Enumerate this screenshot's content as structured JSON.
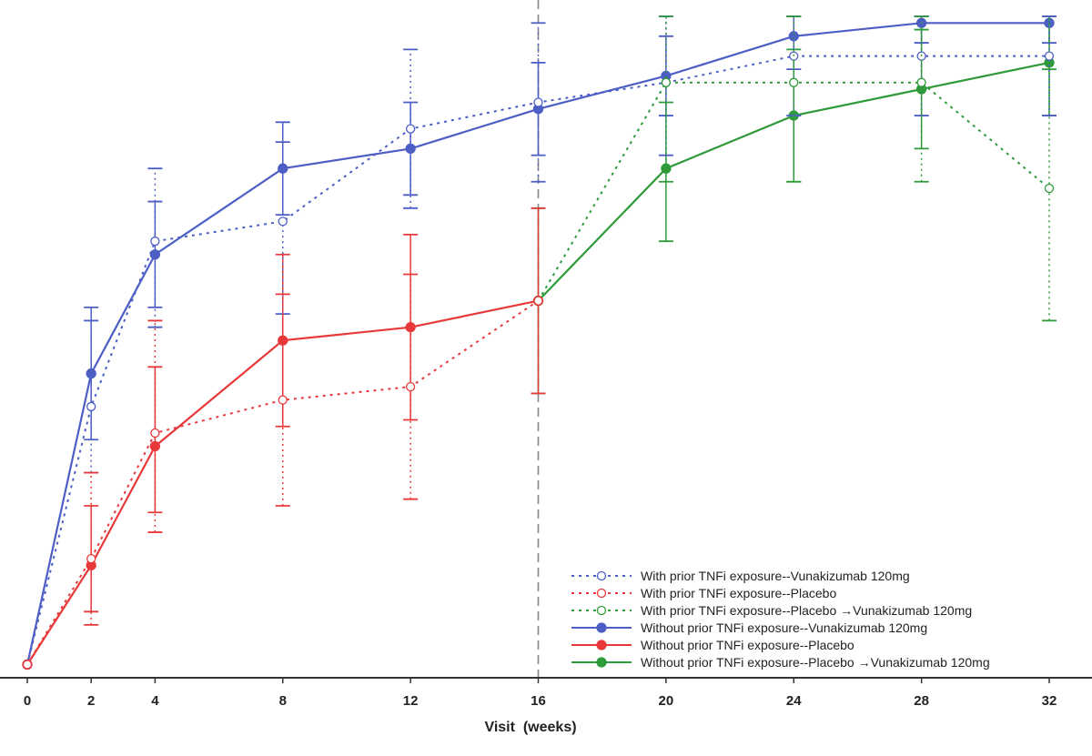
{
  "chart_data": {
    "type": "line",
    "title": "",
    "xlabel": "Visit  (weeks)",
    "ylabel": "",
    "x_ticks": [
      0,
      2,
      4,
      8,
      12,
      16,
      20,
      24,
      28,
      32
    ],
    "xlim": [
      0,
      32
    ],
    "ylim": [
      0,
      100
    ],
    "grid": false,
    "reference_line_x": 16,
    "legend_position": "bottom-right",
    "series": [
      {
        "name": "With prior TNFi exposure--Vunakizumab 120mg",
        "color": "#4d5ec4",
        "style": "dotted",
        "marker": "open",
        "points": [
          {
            "x": 0,
            "y": 2,
            "lo": 2,
            "hi": 2
          },
          {
            "x": 2,
            "y": 41,
            "lo": 31,
            "hi": 54
          },
          {
            "x": 4,
            "y": 66,
            "lo": 53,
            "hi": 77
          },
          {
            "x": 8,
            "y": 69,
            "lo": 55,
            "hi": 81
          },
          {
            "x": 12,
            "y": 83,
            "lo": 71,
            "hi": 95
          },
          {
            "x": 16,
            "y": 87,
            "lo": 75,
            "hi": 99
          },
          {
            "x": 20,
            "y": 90,
            "lo": 79,
            "hi": 100
          },
          {
            "x": 24,
            "y": 94,
            "lo": 85,
            "hi": 100
          },
          {
            "x": 28,
            "y": 94,
            "lo": 85,
            "hi": 100
          },
          {
            "x": 32,
            "y": 94,
            "lo": 85,
            "hi": 100
          }
        ]
      },
      {
        "name": "With prior TNFi exposure--Placebo",
        "color": "#e8393a",
        "style": "dotted",
        "marker": "open",
        "points": [
          {
            "x": 0,
            "y": 2,
            "lo": 2,
            "hi": 2
          },
          {
            "x": 2,
            "y": 18,
            "lo": 8,
            "hi": 31
          },
          {
            "x": 4,
            "y": 37,
            "lo": 22,
            "hi": 54
          },
          {
            "x": 8,
            "y": 42,
            "lo": 26,
            "hi": 58
          },
          {
            "x": 12,
            "y": 44,
            "lo": 27,
            "hi": 61
          },
          {
            "x": 16,
            "y": 57,
            "lo": 57,
            "hi": 57
          }
        ]
      },
      {
        "name": "With prior TNFi exposure--Placebo →Vunakizumab 120mg",
        "color": "#2e9a3a",
        "style": "dotted",
        "marker": "open",
        "points": [
          {
            "x": 16,
            "y": 57,
            "lo": 57,
            "hi": 57
          },
          {
            "x": 20,
            "y": 90,
            "lo": 75,
            "hi": 100
          },
          {
            "x": 24,
            "y": 90,
            "lo": 75,
            "hi": 100
          },
          {
            "x": 28,
            "y": 90,
            "lo": 75,
            "hi": 100
          },
          {
            "x": 32,
            "y": 74,
            "lo": 54,
            "hi": 92
          }
        ]
      },
      {
        "name": "Without prior TNFi exposure--Vunakizumab 120mg",
        "color": "#4d5ec4",
        "style": "solid",
        "marker": "filled",
        "points": [
          {
            "x": 0,
            "y": 2,
            "lo": 2,
            "hi": 2
          },
          {
            "x": 2,
            "y": 46,
            "lo": 36,
            "hi": 56
          },
          {
            "x": 4,
            "y": 64,
            "lo": 56,
            "hi": 72
          },
          {
            "x": 8,
            "y": 77,
            "lo": 70,
            "hi": 84
          },
          {
            "x": 12,
            "y": 80,
            "lo": 73,
            "hi": 87
          },
          {
            "x": 16,
            "y": 86,
            "lo": 79,
            "hi": 93
          },
          {
            "x": 20,
            "y": 91,
            "lo": 85,
            "hi": 97
          },
          {
            "x": 24,
            "y": 97,
            "lo": 92,
            "hi": 100
          },
          {
            "x": 28,
            "y": 99,
            "lo": 96,
            "hi": 100
          },
          {
            "x": 32,
            "y": 99,
            "lo": 96,
            "hi": 100
          }
        ]
      },
      {
        "name": "Without prior TNFi exposure--Placebo",
        "color": "#e8393a",
        "style": "solid",
        "marker": "filled",
        "points": [
          {
            "x": 0,
            "y": 2,
            "lo": 2,
            "hi": 2
          },
          {
            "x": 2,
            "y": 17,
            "lo": 10,
            "hi": 26
          },
          {
            "x": 4,
            "y": 35,
            "lo": 25,
            "hi": 47
          },
          {
            "x": 8,
            "y": 51,
            "lo": 38,
            "hi": 64
          },
          {
            "x": 12,
            "y": 53,
            "lo": 39,
            "hi": 67
          },
          {
            "x": 16,
            "y": 57,
            "lo": 43,
            "hi": 71
          }
        ]
      },
      {
        "name": "Without prior TNFi exposure--Placebo →Vunakizumab 120mg",
        "color": "#2e9a3a",
        "style": "solid",
        "marker": "filled",
        "points": [
          {
            "x": 16,
            "y": 57,
            "lo": 43,
            "hi": 71
          },
          {
            "x": 20,
            "y": 77,
            "lo": 66,
            "hi": 87
          },
          {
            "x": 24,
            "y": 85,
            "lo": 75,
            "hi": 95
          },
          {
            "x": 28,
            "y": 89,
            "lo": 80,
            "hi": 98
          },
          {
            "x": 32,
            "y": 93,
            "lo": 85,
            "hi": 100
          }
        ]
      }
    ]
  }
}
